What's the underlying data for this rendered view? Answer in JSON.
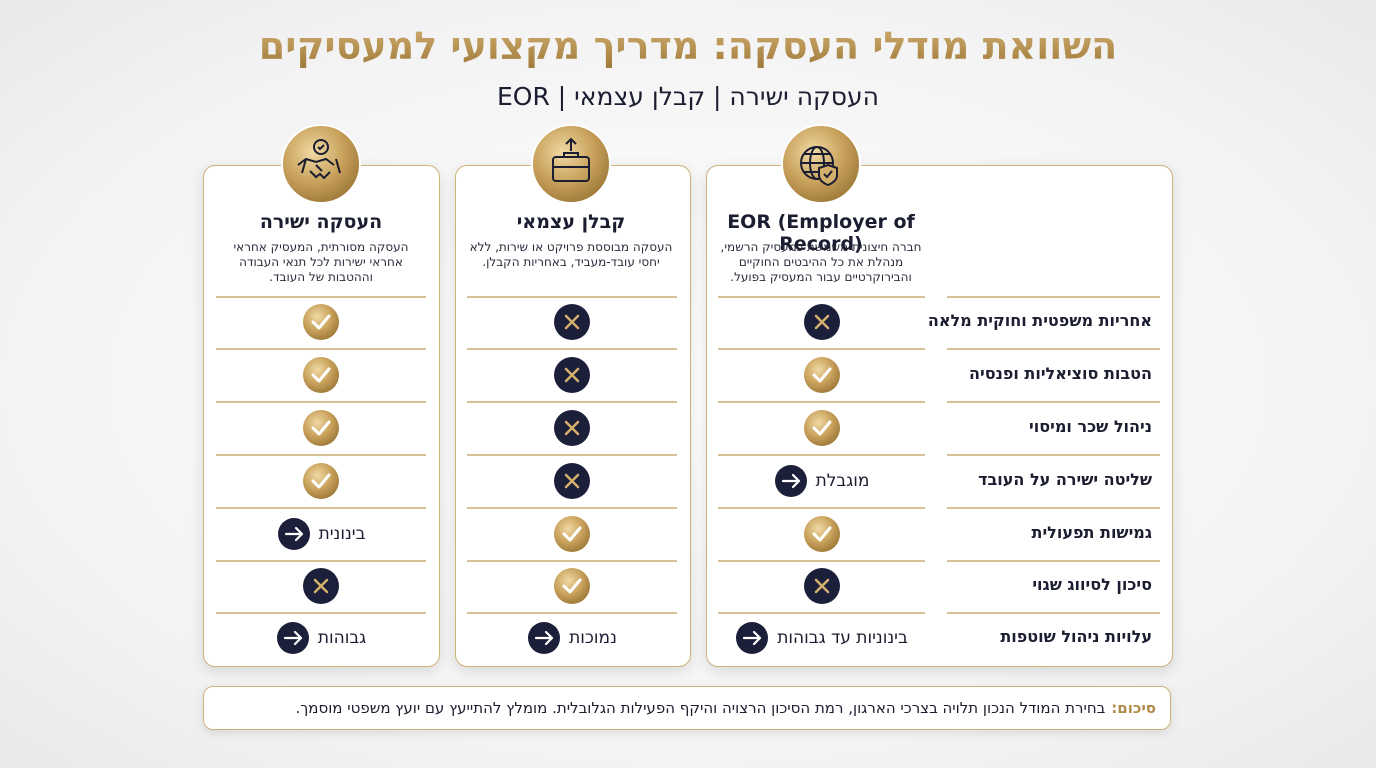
{
  "header": {
    "title": "השוואת מודלי העסקה: מדריך מקצועי למעסיקים",
    "subtitle": "העסקה ישירה | קבלן עצמאי | EOR"
  },
  "columns": [
    {
      "title": "EOR (Employer of Record)",
      "description": "חברה חיצונית משמשת כמעסיק הרשמי, מנהלת את כל ההיבטים החוקיים והבירוקרטיים עבור המעסיק בפועל."
    },
    {
      "title": "קבלן עצמאי",
      "description": "העסקה מבוססת פרויקט או שירות, ללא יחסי עובד-מעביד, באחריות הקבלן."
    },
    {
      "title": "העסקה ישירה",
      "description": "העסקה מסורתית, המעסיק אחראי אחראי ישירות לכל תנאי העבודה וההטבות של העובד."
    }
  ],
  "rows": [
    {
      "label": "אחריות משפטית וחוקית מלאה",
      "cells": [
        {
          "status": "cross"
        },
        {
          "status": "cross"
        },
        {
          "status": "check"
        }
      ]
    },
    {
      "label": "הטבות סוציאליות ופנסיה",
      "cells": [
        {
          "status": "check"
        },
        {
          "status": "cross"
        },
        {
          "status": "check"
        }
      ]
    },
    {
      "label": "ניהול שכר ומיסוי",
      "cells": [
        {
          "status": "check"
        },
        {
          "status": "cross"
        },
        {
          "status": "check"
        }
      ]
    },
    {
      "label": "שליטה ישירה על העובד",
      "cells": [
        {
          "status": "arrow",
          "text": "מוגבלת"
        },
        {
          "status": "cross"
        },
        {
          "status": "check"
        }
      ]
    },
    {
      "label": "גמישות תפעולית",
      "cells": [
        {
          "status": "check"
        },
        {
          "status": "check"
        },
        {
          "status": "arrow",
          "text": "בינונית"
        }
      ]
    },
    {
      "label": "סיכון לסיווג שגוי",
      "cells": [
        {
          "status": "cross"
        },
        {
          "status": "check"
        },
        {
          "status": "cross"
        }
      ]
    },
    {
      "label": "עלויות ניהול שוטפות",
      "cells": [
        {
          "status": "arrow",
          "text": "בינוניות עד גבוהות"
        },
        {
          "status": "arrow",
          "text": "נמוכות"
        },
        {
          "status": "arrow",
          "text": "גבוהות"
        }
      ]
    }
  ],
  "summary": {
    "label": "סיכום:",
    "text": "בחירת המודל הנכון תלויה בצרכי הארגון, רמת הסיכון הרצויה והיקף הפעילות הגלובלית. מומלץ להתייעץ עם יועץ משפטי מוסמך."
  }
}
